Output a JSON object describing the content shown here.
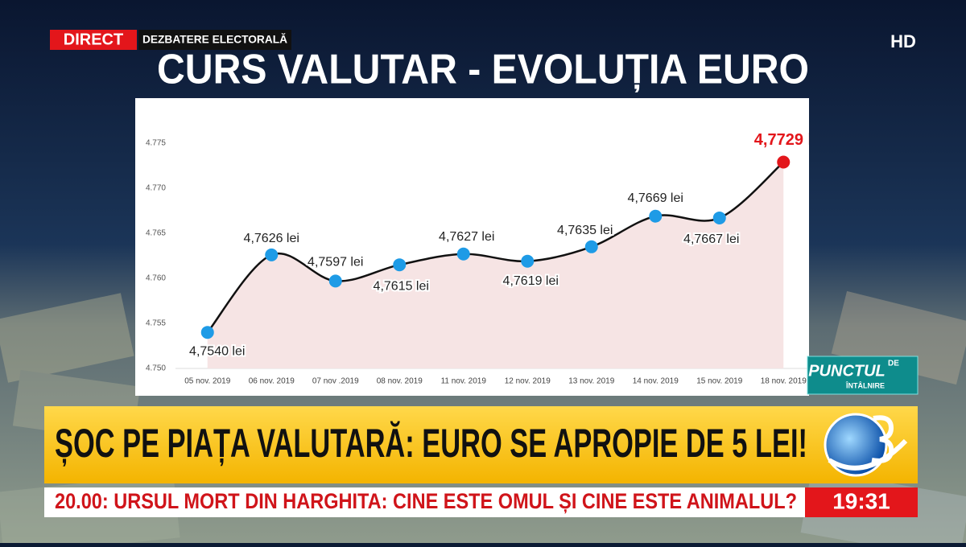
{
  "broadcast": {
    "live": "DIRECT",
    "show": "DEZBATERE ELECTORALĂ",
    "quality": "HD",
    "headline": "ȘOC PE PIAȚA VALUTARĂ: EURO SE APROPIE DE 5 LEI!",
    "ticker": "20.00: URSUL MORT DIN HARGHITA: CINE ESTE OMUL ȘI CINE ESTE ANIMALUL?",
    "clock": "19:31",
    "logo": {
      "word": "PUNCTUL",
      "small": "DE",
      "sub": "ÎNTÂLNIRE"
    }
  },
  "chart_data": {
    "type": "line",
    "title": "CURS VALUTAR - EVOLUȚIA EURO",
    "categories": [
      "05 nov. 2019",
      "06 nov. 2019",
      "07 nov .2019",
      "08 nov. 2019",
      "11 nov. 2019",
      "12 nov. 2019",
      "13 nov. 2019",
      "14 nov. 2019",
      "15 nov. 2019",
      "18 nov. 2019"
    ],
    "values": [
      4.754,
      4.7626,
      4.7597,
      4.7615,
      4.7627,
      4.7619,
      4.7635,
      4.7669,
      4.7667,
      4.7729
    ],
    "value_labels": [
      "4,7540 lei",
      "4,7626 lei",
      "4,7597 lei",
      "4,7615 lei",
      "4,7627 lei",
      "4,7619 lei",
      "4,7635 lei",
      "4,7669 lei",
      "4,7667 lei",
      "4,7729 lei"
    ],
    "color": "#111111",
    "point_colors": [
      "#1e9be6",
      "#1e9be6",
      "#1e9be6",
      "#1e9be6",
      "#1e9be6",
      "#1e9be6",
      "#1e9be6",
      "#1e9be6",
      "#1e9be6",
      "#e3161b"
    ],
    "area_color": "#f6e4e4",
    "ylim": [
      4.75,
      4.775
    ],
    "yticks": [
      {
        "value": 4.75,
        "label": "4.750"
      },
      {
        "value": 4.755,
        "label": "4.755"
      },
      {
        "value": 4.76,
        "label": "4.760"
      },
      {
        "value": 4.765,
        "label": "4.765"
      },
      {
        "value": 4.77,
        "label": "4.770"
      },
      {
        "value": 4.775,
        "label": "4.775"
      }
    ],
    "grid": false
  }
}
